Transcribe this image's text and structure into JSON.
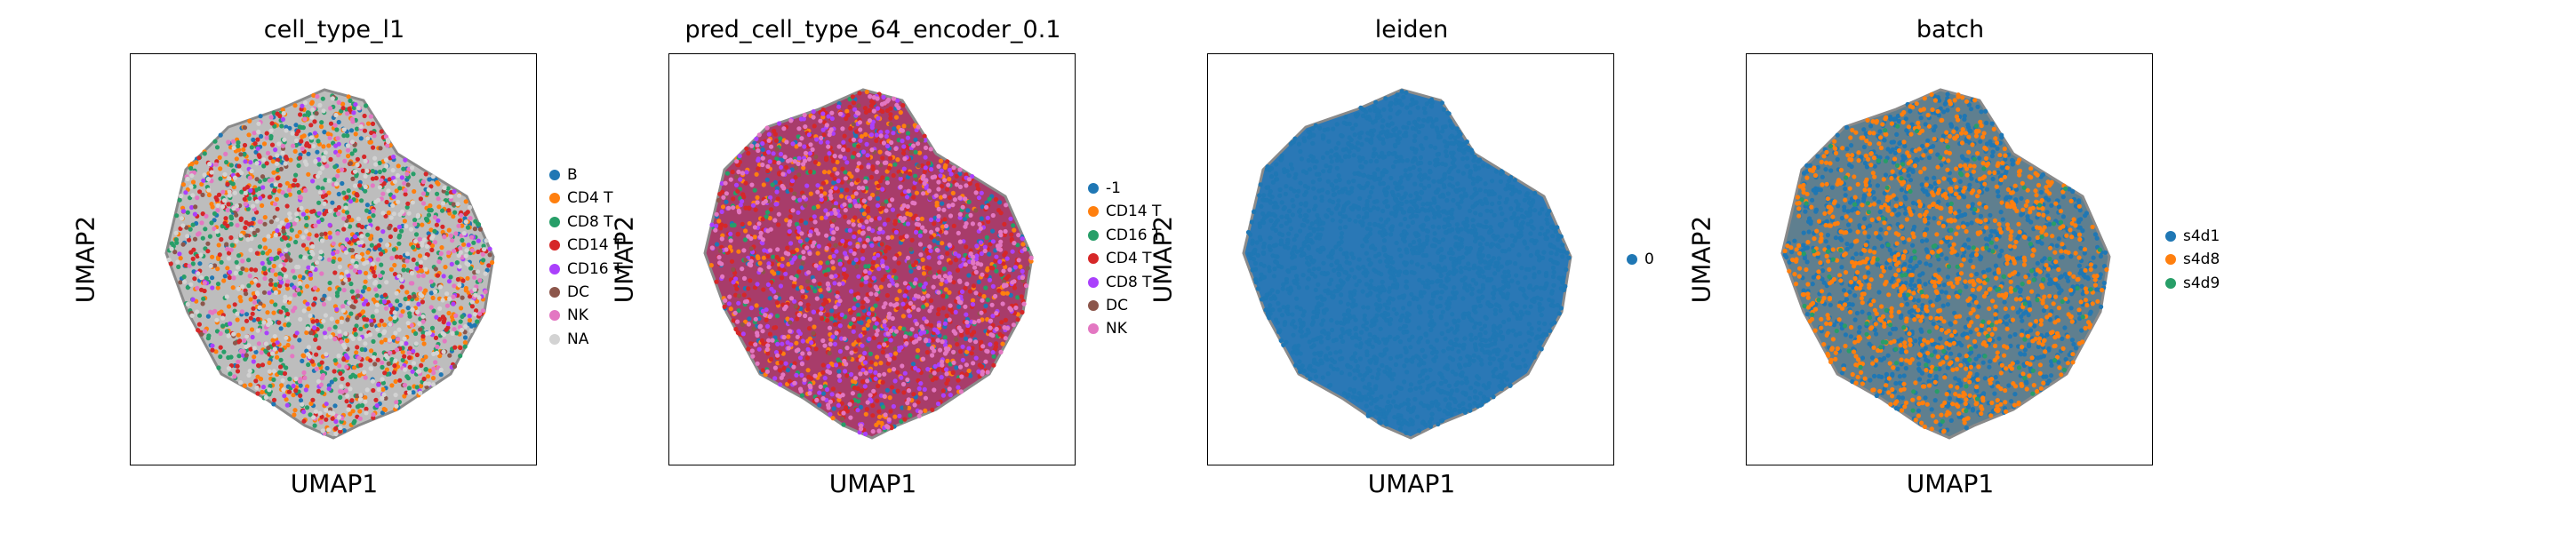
{
  "chart_data": [
    {
      "type": "scatter",
      "title": "cell_type_l1",
      "xlabel": "UMAP1",
      "ylabel": "UMAP2",
      "grid": false,
      "legend_position": "right",
      "background": "#bdbdbd",
      "series": [
        {
          "name": "B",
          "color": "#1f77b4",
          "weight": 0.08
        },
        {
          "name": "CD4 T",
          "color": "#ff7f0e",
          "weight": 0.2
        },
        {
          "name": "CD8 T",
          "color": "#279e68",
          "weight": 0.2
        },
        {
          "name": "CD14 T",
          "color": "#d62728",
          "weight": 0.16
        },
        {
          "name": "CD16 T",
          "color": "#aa40fc",
          "weight": 0.06
        },
        {
          "name": "DC",
          "color": "#8c564b",
          "weight": 0.04
        },
        {
          "name": "NK",
          "color": "#e377c2",
          "weight": 0.1
        },
        {
          "name": "NA",
          "color": "#d3d3d3",
          "weight": 0.16
        }
      ]
    },
    {
      "type": "scatter",
      "title": "pred_cell_type_64_encoder_0.1",
      "xlabel": "UMAP1",
      "ylabel": "UMAP2",
      "grid": false,
      "legend_position": "right",
      "background": "#a83c6a",
      "series": [
        {
          "name": "-1",
          "color": "#1f77b4",
          "weight": 0.08
        },
        {
          "name": "CD14 T",
          "color": "#ff7f0e",
          "weight": 0.14
        },
        {
          "name": "CD16 T",
          "color": "#279e68",
          "weight": 0.07
        },
        {
          "name": "CD4 T",
          "color": "#d62728",
          "weight": 0.26
        },
        {
          "name": "CD8 T",
          "color": "#aa40fc",
          "weight": 0.18
        },
        {
          "name": "DC",
          "color": "#8c564b",
          "weight": 0.03
        },
        {
          "name": "NK",
          "color": "#e377c2",
          "weight": 0.24
        }
      ]
    },
    {
      "type": "scatter",
      "title": "leiden",
      "xlabel": "UMAP1",
      "ylabel": "UMAP2",
      "grid": false,
      "legend_position": "right",
      "background": "#2a78b6",
      "series": [
        {
          "name": "0",
          "color": "#1f77b4",
          "weight": 1.0
        }
      ]
    },
    {
      "type": "scatter",
      "title": "batch",
      "xlabel": "UMAP1",
      "ylabel": "UMAP2",
      "grid": false,
      "legend_position": "right",
      "background": "#5f7f8f",
      "series": [
        {
          "name": "s4d1",
          "color": "#1f77b4",
          "weight": 0.5
        },
        {
          "name": "s4d8",
          "color": "#ff7f0e",
          "weight": 0.45
        },
        {
          "name": "s4d9",
          "color": "#279e68",
          "weight": 0.05
        }
      ]
    }
  ]
}
